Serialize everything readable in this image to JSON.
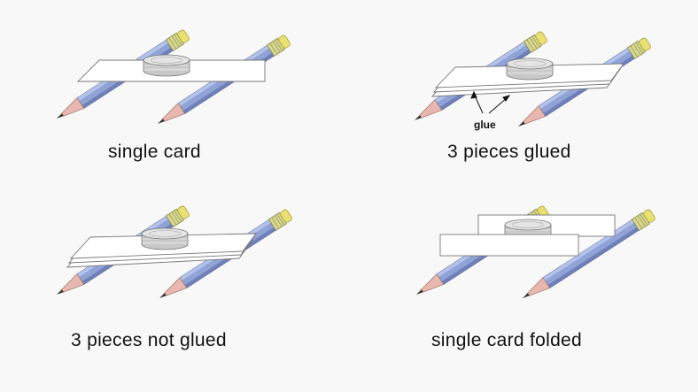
{
  "panels": [
    {
      "caption": "single card"
    },
    {
      "caption": "3 pieces glued",
      "annotation": "glue"
    },
    {
      "caption": "3 pieces not glued"
    },
    {
      "caption": "single card folded"
    }
  ],
  "colors": {
    "pencil_body": "#8fa3d6",
    "pencil_shadow": "#6f80b8",
    "pencil_wood": "#e8b8b0",
    "pencil_ferrule": "#d8d890",
    "eraser": "#e8e070",
    "card": "#ffffff",
    "coin": "#d8d8d8"
  }
}
